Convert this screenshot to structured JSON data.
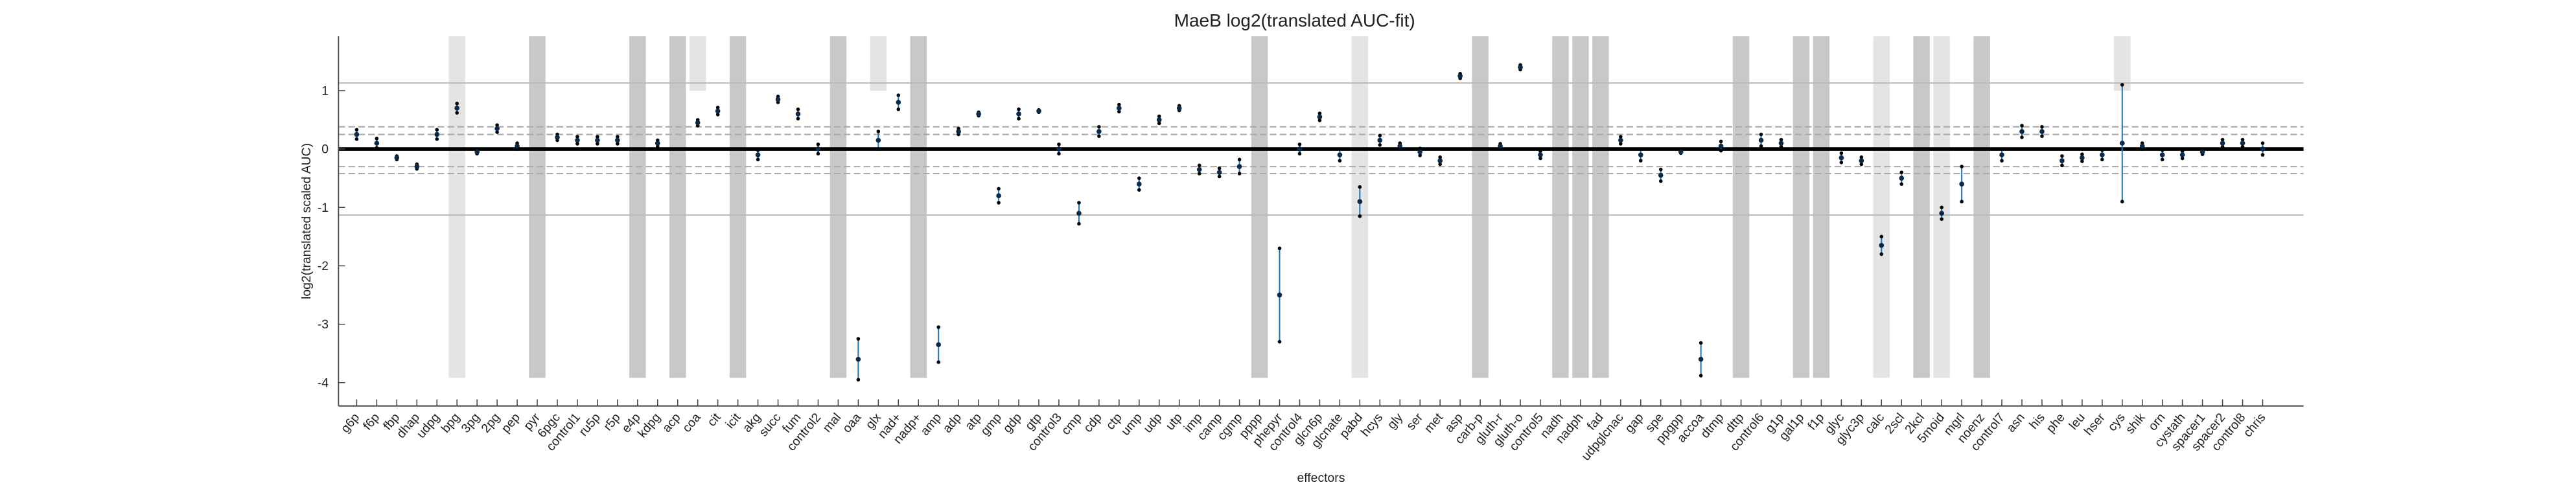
{
  "chart_data": {
    "type": "errorbar",
    "title": "MaeB log2(translated AUC-fit)",
    "x_label": "effectors",
    "y_label": "log2(translated scaled AUC)",
    "categories": [
      "g6p",
      "f6p",
      "fbp",
      "dhap",
      "udpg",
      "bpg",
      "3pg",
      "2pg",
      "pep",
      "pyr",
      "6pgc",
      "control1",
      "ru5p",
      "r5p",
      "e4p",
      "kdpg",
      "acp",
      "coa",
      "cit",
      "icit",
      "akg",
      "succ",
      "fum",
      "control2",
      "mal",
      "oaa",
      "glx",
      "nad+",
      "nadp+",
      "amp",
      "adp",
      "atp",
      "gmp",
      "gdp",
      "gtp",
      "control3",
      "cmp",
      "cdp",
      "ctp",
      "ump",
      "udp",
      "utp",
      "imp",
      "camp",
      "cgmp",
      "pppp",
      "phepyr",
      "control4",
      "glcn6p",
      "glcnate",
      "pabd",
      "hcys",
      "gly",
      "ser",
      "met",
      "asp",
      "carb-p",
      "gluth-r",
      "gluth-o",
      "control5",
      "nadh",
      "nadph",
      "fad",
      "udpglcnac",
      "gap",
      "spe",
      "ppgpp",
      "accoa",
      "dtmp",
      "dttp",
      "control6",
      "g1p",
      "gal1p",
      "f1p",
      "glyc",
      "glyc3p",
      "calc",
      "2scl",
      "2kcl",
      "5moid",
      "mgrl",
      "noenz",
      "control7",
      "asn",
      "his",
      "phe",
      "leu",
      "hser",
      "cys",
      "shik",
      "orn",
      "cystath",
      "spacer1",
      "spacer2",
      "control8",
      "chris"
    ],
    "series": [
      {
        "color": "#1f77b4",
        "values": [
          0.25,
          0.1,
          -0.15,
          -0.3,
          0.25,
          0.7,
          -0.05,
          0.35,
          0.05,
          null,
          0.2,
          0.15,
          0.15,
          0.15,
          null,
          0.1,
          null,
          0.45,
          0.65,
          null,
          -0.1,
          0.85,
          0.6,
          0,
          null,
          -3.6,
          0.15,
          0.8,
          null,
          -3.35,
          0.3,
          0.6,
          -0.8,
          0.6,
          0.65,
          0,
          -1.1,
          0.3,
          0.7,
          -0.6,
          0.5,
          0.7,
          -0.35,
          -0.4,
          -0.3,
          null,
          -2.5,
          0,
          0.55,
          -0.1,
          -0.9,
          0.15,
          0.05,
          -0.05,
          -0.2,
          1.25,
          null,
          0.05,
          1.4,
          -0.1,
          null,
          null,
          null,
          0.15,
          -0.1,
          -0.45,
          -0.05,
          -3.6,
          0.05,
          null,
          0.15,
          0.1,
          null,
          null,
          -0.15,
          -0.2,
          -1.65,
          -0.5,
          null,
          -1.1,
          -0.6,
          null,
          -0.1,
          0.3,
          0.3,
          -0.2,
          -0.15,
          -0.1,
          0.1,
          0.05,
          -0.1,
          -0.1,
          -0.05,
          0.1,
          0.1,
          0
        ],
        "errors": [
          0.08,
          0.08,
          0.03,
          0.04,
          0.08,
          0.08,
          0.03,
          0.06,
          0.05,
          null,
          0.05,
          0.06,
          0.06,
          0.06,
          null,
          0.05,
          null,
          0.05,
          0.06,
          null,
          0.08,
          0.05,
          0.08,
          0.08,
          null,
          0.35,
          0.15,
          0.12,
          null,
          0.3,
          0.05,
          0.03,
          0.12,
          0.08,
          0.02,
          0.08,
          0.18,
          0.08,
          0.06,
          0.1,
          0.06,
          0.04,
          0.07,
          0.07,
          0.12,
          null,
          0.8,
          0.08,
          0.06,
          0.1,
          0.25,
          0.08,
          0.05,
          0.06,
          0.06,
          0.04,
          null,
          0.04,
          0.04,
          0.06,
          null,
          null,
          null,
          0.06,
          0.1,
          0.1,
          0.02,
          0.28,
          0.08,
          null,
          0.1,
          0.06,
          null,
          null,
          0.08,
          0.06,
          0.15,
          0.1,
          null,
          0.1,
          0.3,
          null,
          0.1,
          0.1,
          0.08,
          0.08,
          0.06,
          0.08,
          1.0,
          0.05,
          0.08,
          0.06,
          0.04,
          0.06,
          0.06,
          0.1
        ]
      }
    ],
    "shade": [
      null,
      null,
      null,
      null,
      null,
      "light",
      null,
      null,
      null,
      "dark",
      null,
      null,
      null,
      null,
      "dark",
      null,
      "dark",
      "light-top",
      null,
      "dark",
      null,
      null,
      null,
      null,
      "dark",
      null,
      "light-top",
      null,
      "dark",
      null,
      null,
      null,
      null,
      null,
      null,
      null,
      null,
      null,
      null,
      null,
      null,
      null,
      null,
      null,
      null,
      "dark",
      null,
      null,
      null,
      null,
      "light",
      null,
      null,
      null,
      null,
      null,
      "dark",
      null,
      null,
      null,
      "dark",
      "dark",
      "dark",
      null,
      null,
      null,
      null,
      null,
      null,
      "dark",
      null,
      null,
      "dark",
      "dark",
      null,
      null,
      "light",
      null,
      "dark",
      "light",
      null,
      "dark",
      null,
      null,
      null,
      null,
      null,
      null,
      "light-top",
      null,
      null,
      null,
      null,
      null,
      null,
      null
    ],
    "ref_lines": [
      {
        "value": 1.13,
        "style": "solid"
      },
      {
        "value": -1.13,
        "style": "solid"
      },
      {
        "value": 0.38,
        "style": "dashed"
      },
      {
        "value": 0.25,
        "style": "dashed"
      },
      {
        "value": -0.3,
        "style": "dashed"
      },
      {
        "value": -0.42,
        "style": "dashed"
      },
      {
        "value": 0,
        "style": "thick"
      }
    ],
    "ylim": [
      -4.4,
      1.93
    ],
    "yticks": [
      -4,
      -3,
      -2,
      -1,
      0,
      1
    ]
  }
}
